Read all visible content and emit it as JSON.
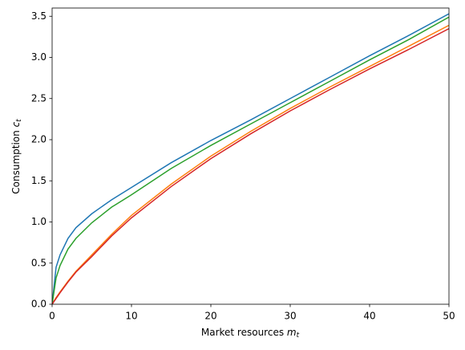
{
  "chart_data": {
    "type": "line",
    "xlabel": {
      "text": "Market resources",
      "var": "m",
      "sub": "t"
    },
    "ylabel": {
      "text": "Consumption",
      "var": "c",
      "sub": "t"
    },
    "x": [
      0,
      0.5,
      1,
      2,
      3,
      5,
      7.5,
      10,
      15,
      20,
      25,
      30,
      35,
      40,
      45,
      50
    ],
    "series": [
      {
        "color": "#1f77b4",
        "values": [
          0,
          0.45,
          0.6,
          0.8,
          0.93,
          1.1,
          1.27,
          1.42,
          1.72,
          1.99,
          2.24,
          2.5,
          2.76,
          3.02,
          3.27,
          3.53
        ]
      },
      {
        "color": "#ff7f0e",
        "values": [
          0,
          0.08,
          0.15,
          0.28,
          0.4,
          0.6,
          0.85,
          1.08,
          1.46,
          1.8,
          2.1,
          2.38,
          2.64,
          2.89,
          3.14,
          3.39
        ]
      },
      {
        "color": "#2ca02c",
        "values": [
          0,
          0.32,
          0.47,
          0.67,
          0.8,
          0.99,
          1.18,
          1.33,
          1.65,
          1.93,
          2.19,
          2.45,
          2.71,
          2.97,
          3.22,
          3.49
        ]
      },
      {
        "color": "#d62728",
        "values": [
          0,
          0.07,
          0.14,
          0.27,
          0.39,
          0.58,
          0.83,
          1.05,
          1.43,
          1.77,
          2.07,
          2.35,
          2.61,
          2.86,
          3.1,
          3.35
        ]
      }
    ],
    "xlim": [
      0,
      50
    ],
    "xticks": [
      0,
      10,
      20,
      30,
      40,
      50
    ],
    "ylim": [
      0,
      3.6
    ],
    "yticks": [
      {
        "value": 0,
        "label": "0.0"
      },
      0.5,
      {
        "value": 1,
        "label": "1.0"
      },
      1.5,
      {
        "value": 2,
        "label": "2.0"
      },
      2.5,
      {
        "value": 3,
        "label": "3.0"
      },
      3.5
    ],
    "grid": false
  }
}
